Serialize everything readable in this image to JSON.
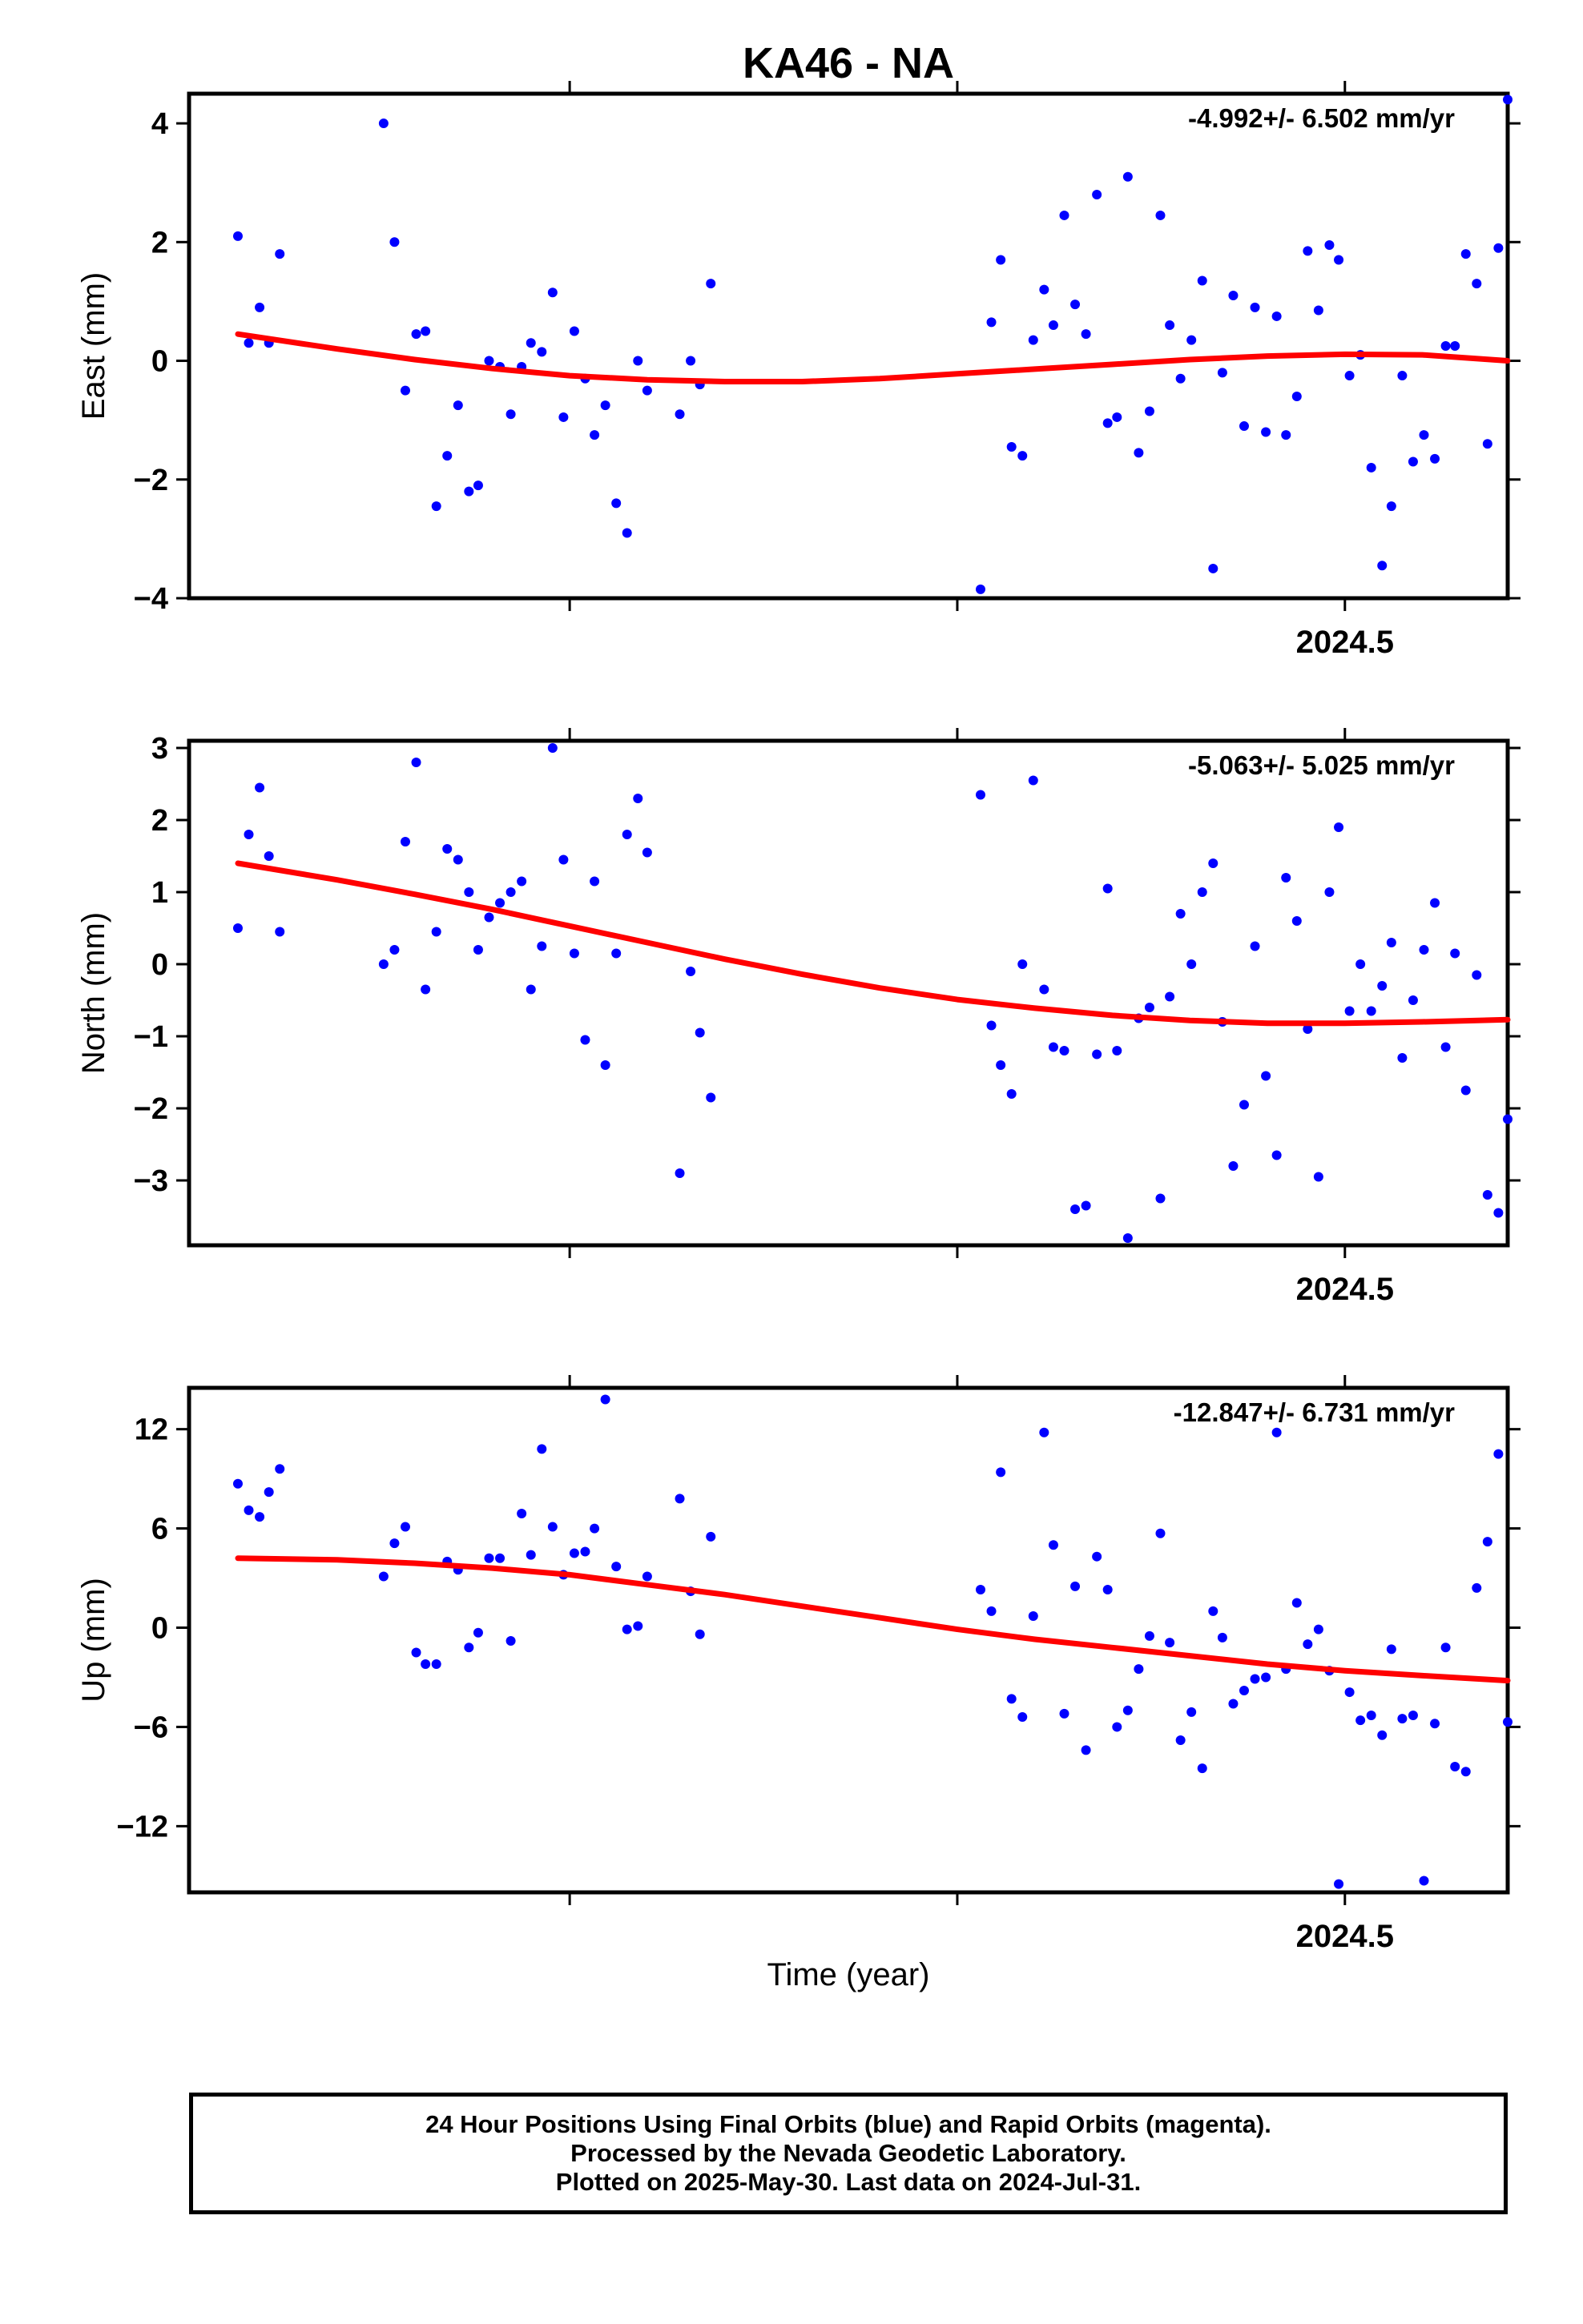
{
  "title": "KA46 - NA",
  "xlabel": "Time (year)",
  "footer": {
    "lines": [
      "24 Hour Positions Using Final Orbits (blue) and Rapid Orbits (magenta).",
      "Processed by the Nevada Geodetic Laboratory.",
      "Plotted on 2025-May-30. Last data on 2024-Jul-31."
    ]
  },
  "colors": {
    "points": "#0000ff",
    "fit": "#ff0000",
    "frame": "#000000"
  },
  "chart_data": [
    {
      "type": "scatter",
      "name": "east",
      "ylabel": "East (mm)",
      "rate_text": "-4.992+/- 6.502 mm/yr",
      "xlim": [
        2023.77,
        2024.605
      ],
      "ylim": [
        -4,
        4.5
      ],
      "yticks": [
        -4,
        -2,
        0,
        2,
        4
      ],
      "ytick_labels": [
        "−4",
        "−2",
        "0",
        "2",
        "4"
      ],
      "xticks": [
        2024.0,
        2024.25,
        2024.5
      ],
      "xtick_labels": [
        "",
        "",
        "2024.5"
      ],
      "points": [
        [
          2023.786,
          2.1
        ],
        [
          2023.793,
          0.3
        ],
        [
          2023.8,
          0.9
        ],
        [
          2023.806,
          0.3
        ],
        [
          2023.813,
          1.8
        ],
        [
          2023.88,
          4.0
        ],
        [
          2023.887,
          2.0
        ],
        [
          2023.894,
          -0.5
        ],
        [
          2023.901,
          0.45
        ],
        [
          2023.907,
          0.5
        ],
        [
          2023.914,
          -2.45
        ],
        [
          2023.921,
          -1.6
        ],
        [
          2023.928,
          -0.75
        ],
        [
          2023.935,
          -2.2
        ],
        [
          2023.941,
          -2.1
        ],
        [
          2023.948,
          0.0
        ],
        [
          2023.955,
          -0.1
        ],
        [
          2023.962,
          -0.9
        ],
        [
          2023.969,
          -0.1
        ],
        [
          2023.975,
          0.3
        ],
        [
          2023.982,
          0.15
        ],
        [
          2023.989,
          1.15
        ],
        [
          2023.996,
          -0.95
        ],
        [
          2024.003,
          0.5
        ],
        [
          2024.01,
          -0.3
        ],
        [
          2024.016,
          -1.25
        ],
        [
          2024.023,
          -0.75
        ],
        [
          2024.03,
          -2.4
        ],
        [
          2024.037,
          -2.9
        ],
        [
          2024.044,
          0.0
        ],
        [
          2024.05,
          -0.5
        ],
        [
          2024.071,
          -0.9
        ],
        [
          2024.078,
          0.0
        ],
        [
          2024.084,
          -0.4
        ],
        [
          2024.091,
          1.3
        ],
        [
          2024.265,
          -3.85
        ],
        [
          2024.272,
          0.65
        ],
        [
          2024.278,
          1.7
        ],
        [
          2024.285,
          -1.45
        ],
        [
          2024.292,
          -1.6
        ],
        [
          2024.299,
          0.35
        ],
        [
          2024.306,
          1.2
        ],
        [
          2024.312,
          0.6
        ],
        [
          2024.319,
          2.45
        ],
        [
          2024.326,
          0.95
        ],
        [
          2024.333,
          0.45
        ],
        [
          2024.34,
          2.8
        ],
        [
          2024.347,
          -1.05
        ],
        [
          2024.353,
          -0.95
        ],
        [
          2024.36,
          3.1
        ],
        [
          2024.367,
          -1.55
        ],
        [
          2024.374,
          -0.85
        ],
        [
          2024.381,
          2.45
        ],
        [
          2024.387,
          0.6
        ],
        [
          2024.394,
          -0.3
        ],
        [
          2024.401,
          0.35
        ],
        [
          2024.408,
          1.35
        ],
        [
          2024.415,
          -3.5
        ],
        [
          2024.421,
          -0.2
        ],
        [
          2024.428,
          1.1
        ],
        [
          2024.435,
          -1.1
        ],
        [
          2024.442,
          0.9
        ],
        [
          2024.449,
          -1.2
        ],
        [
          2024.456,
          0.75
        ],
        [
          2024.462,
          -1.25
        ],
        [
          2024.469,
          -0.6
        ],
        [
          2024.476,
          1.85
        ],
        [
          2024.483,
          0.85
        ],
        [
          2024.49,
          1.95
        ],
        [
          2024.496,
          1.7
        ],
        [
          2024.503,
          -0.25
        ],
        [
          2024.51,
          0.1
        ],
        [
          2024.517,
          -1.8
        ],
        [
          2024.524,
          -3.45
        ],
        [
          2024.53,
          -2.45
        ],
        [
          2024.537,
          -0.25
        ],
        [
          2024.544,
          -1.7
        ],
        [
          2024.551,
          -1.25
        ],
        [
          2024.558,
          -1.65
        ],
        [
          2024.565,
          0.25
        ],
        [
          2024.571,
          0.25
        ],
        [
          2024.578,
          1.8
        ],
        [
          2024.585,
          1.3
        ],
        [
          2024.592,
          -1.4
        ],
        [
          2024.599,
          1.9
        ],
        [
          2024.605,
          4.4
        ]
      ],
      "fit": [
        [
          2023.786,
          0.45
        ],
        [
          2023.85,
          0.2
        ],
        [
          2023.9,
          0.02
        ],
        [
          2023.95,
          -0.13
        ],
        [
          2024.0,
          -0.25
        ],
        [
          2024.05,
          -0.32
        ],
        [
          2024.1,
          -0.35
        ],
        [
          2024.15,
          -0.35
        ],
        [
          2024.2,
          -0.3
        ],
        [
          2024.25,
          -0.22
        ],
        [
          2024.3,
          -0.14
        ],
        [
          2024.35,
          -0.06
        ],
        [
          2024.4,
          0.02
        ],
        [
          2024.45,
          0.08
        ],
        [
          2024.5,
          0.11
        ],
        [
          2024.55,
          0.1
        ],
        [
          2024.605,
          0.0
        ]
      ]
    },
    {
      "type": "scatter",
      "name": "north",
      "ylabel": "North (mm)",
      "rate_text": "-5.063+/- 5.025 mm/yr",
      "xlim": [
        2023.77,
        2024.605
      ],
      "ylim": [
        -3.9,
        3.1
      ],
      "yticks": [
        -3,
        -2,
        -1,
        0,
        1,
        2,
        3
      ],
      "ytick_labels": [
        "−3",
        "−2",
        "−1",
        "0",
        "1",
        "2",
        "3"
      ],
      "xticks": [
        2024.0,
        2024.25,
        2024.5
      ],
      "xtick_labels": [
        "",
        "",
        "2024.5"
      ],
      "points": [
        [
          2023.786,
          0.5
        ],
        [
          2023.793,
          1.8
        ],
        [
          2023.8,
          2.45
        ],
        [
          2023.806,
          1.5
        ],
        [
          2023.813,
          0.45
        ],
        [
          2023.88,
          0.0
        ],
        [
          2023.887,
          0.2
        ],
        [
          2023.894,
          1.7
        ],
        [
          2023.901,
          2.8
        ],
        [
          2023.907,
          -0.35
        ],
        [
          2023.914,
          0.45
        ],
        [
          2023.921,
          1.6
        ],
        [
          2023.928,
          1.45
        ],
        [
          2023.935,
          1.0
        ],
        [
          2023.941,
          0.2
        ],
        [
          2023.948,
          0.65
        ],
        [
          2023.955,
          0.85
        ],
        [
          2023.962,
          1.0
        ],
        [
          2023.969,
          1.15
        ],
        [
          2023.975,
          -0.35
        ],
        [
          2023.982,
          0.25
        ],
        [
          2023.989,
          3.0
        ],
        [
          2023.996,
          1.45
        ],
        [
          2024.003,
          0.15
        ],
        [
          2024.01,
          -1.05
        ],
        [
          2024.016,
          1.15
        ],
        [
          2024.023,
          -1.4
        ],
        [
          2024.03,
          0.15
        ],
        [
          2024.037,
          1.8
        ],
        [
          2024.044,
          2.3
        ],
        [
          2024.05,
          1.55
        ],
        [
          2024.071,
          -2.9
        ],
        [
          2024.078,
          -0.1
        ],
        [
          2024.084,
          -0.95
        ],
        [
          2024.091,
          -1.85
        ],
        [
          2024.265,
          2.35
        ],
        [
          2024.272,
          -0.85
        ],
        [
          2024.278,
          -1.4
        ],
        [
          2024.285,
          -1.8
        ],
        [
          2024.292,
          0.0
        ],
        [
          2024.299,
          2.55
        ],
        [
          2024.306,
          -0.35
        ],
        [
          2024.312,
          -1.15
        ],
        [
          2024.319,
          -1.2
        ],
        [
          2024.326,
          -3.4
        ],
        [
          2024.333,
          -3.35
        ],
        [
          2024.34,
          -1.25
        ],
        [
          2024.347,
          1.05
        ],
        [
          2024.353,
          -1.2
        ],
        [
          2024.36,
          -3.8
        ],
        [
          2024.367,
          -0.75
        ],
        [
          2024.374,
          -0.6
        ],
        [
          2024.381,
          -3.25
        ],
        [
          2024.387,
          -0.45
        ],
        [
          2024.394,
          0.7
        ],
        [
          2024.401,
          0.0
        ],
        [
          2024.408,
          1.0
        ],
        [
          2024.415,
          1.4
        ],
        [
          2024.421,
          -0.8
        ],
        [
          2024.428,
          -2.8
        ],
        [
          2024.435,
          -1.95
        ],
        [
          2024.442,
          0.25
        ],
        [
          2024.449,
          -1.55
        ],
        [
          2024.456,
          -2.65
        ],
        [
          2024.462,
          1.2
        ],
        [
          2024.469,
          0.6
        ],
        [
          2024.476,
          -0.9
        ],
        [
          2024.483,
          -2.95
        ],
        [
          2024.49,
          1.0
        ],
        [
          2024.496,
          1.9
        ],
        [
          2024.503,
          -0.65
        ],
        [
          2024.51,
          0.0
        ],
        [
          2024.517,
          -0.65
        ],
        [
          2024.524,
          -0.3
        ],
        [
          2024.53,
          0.3
        ],
        [
          2024.537,
          -1.3
        ],
        [
          2024.544,
          -0.5
        ],
        [
          2024.551,
          0.2
        ],
        [
          2024.558,
          0.85
        ],
        [
          2024.565,
          -1.15
        ],
        [
          2024.571,
          0.15
        ],
        [
          2024.578,
          -1.75
        ],
        [
          2024.585,
          -0.15
        ],
        [
          2024.592,
          -3.2
        ],
        [
          2024.599,
          -3.45
        ],
        [
          2024.605,
          -2.15
        ]
      ],
      "fit": [
        [
          2023.786,
          1.4
        ],
        [
          2023.85,
          1.17
        ],
        [
          2023.9,
          0.97
        ],
        [
          2023.95,
          0.76
        ],
        [
          2024.0,
          0.53
        ],
        [
          2024.05,
          0.3
        ],
        [
          2024.1,
          0.07
        ],
        [
          2024.15,
          -0.14
        ],
        [
          2024.2,
          -0.33
        ],
        [
          2024.25,
          -0.49
        ],
        [
          2024.3,
          -0.61
        ],
        [
          2024.35,
          -0.71
        ],
        [
          2024.4,
          -0.78
        ],
        [
          2024.45,
          -0.82
        ],
        [
          2024.5,
          -0.82
        ],
        [
          2024.55,
          -0.8
        ],
        [
          2024.605,
          -0.77
        ]
      ]
    },
    {
      "type": "scatter",
      "name": "up",
      "ylabel": "Up (mm)",
      "rate_text": "-12.847+/- 6.731 mm/yr",
      "xlim": [
        2023.77,
        2024.605
      ],
      "ylim": [
        -16,
        14.5
      ],
      "yticks": [
        -12,
        -6,
        0,
        6,
        12
      ],
      "ytick_labels": [
        "−12",
        "−6",
        "0",
        "6",
        "12"
      ],
      "xticks": [
        2024.0,
        2024.25,
        2024.5
      ],
      "xtick_labels": [
        "",
        "",
        "2024.5"
      ],
      "points": [
        [
          2023.786,
          8.7
        ],
        [
          2023.793,
          7.1
        ],
        [
          2023.8,
          6.7
        ],
        [
          2023.806,
          8.2
        ],
        [
          2023.813,
          9.6
        ],
        [
          2023.88,
          3.1
        ],
        [
          2023.887,
          5.1
        ],
        [
          2023.894,
          6.1
        ],
        [
          2023.901,
          -1.5
        ],
        [
          2023.907,
          -2.2
        ],
        [
          2023.914,
          -2.2
        ],
        [
          2023.921,
          4.0
        ],
        [
          2023.928,
          3.5
        ],
        [
          2023.935,
          -1.2
        ],
        [
          2023.941,
          -0.3
        ],
        [
          2023.948,
          4.2
        ],
        [
          2023.955,
          4.2
        ],
        [
          2023.962,
          -0.8
        ],
        [
          2023.969,
          6.9
        ],
        [
          2023.975,
          4.4
        ],
        [
          2023.982,
          10.8
        ],
        [
          2023.989,
          6.1
        ],
        [
          2023.996,
          3.2
        ],
        [
          2024.003,
          4.5
        ],
        [
          2024.01,
          4.6
        ],
        [
          2024.016,
          6.0
        ],
        [
          2024.023,
          13.8
        ],
        [
          2024.03,
          3.7
        ],
        [
          2024.037,
          -0.1
        ],
        [
          2024.044,
          0.1
        ],
        [
          2024.05,
          3.1
        ],
        [
          2024.071,
          7.8
        ],
        [
          2024.078,
          2.2
        ],
        [
          2024.084,
          -0.4
        ],
        [
          2024.091,
          5.5
        ],
        [
          2024.265,
          2.3
        ],
        [
          2024.272,
          1.0
        ],
        [
          2024.278,
          9.4
        ],
        [
          2024.285,
          -4.3
        ],
        [
          2024.292,
          -5.4
        ],
        [
          2024.299,
          0.7
        ],
        [
          2024.306,
          11.8
        ],
        [
          2024.312,
          5.0
        ],
        [
          2024.319,
          -5.2
        ],
        [
          2024.326,
          2.5
        ],
        [
          2024.333,
          -7.4
        ],
        [
          2024.34,
          4.3
        ],
        [
          2024.347,
          2.3
        ],
        [
          2024.353,
          -6.0
        ],
        [
          2024.36,
          -5.0
        ],
        [
          2024.367,
          -2.5
        ],
        [
          2024.374,
          -0.5
        ],
        [
          2024.381,
          5.7
        ],
        [
          2024.387,
          -0.9
        ],
        [
          2024.394,
          -6.8
        ],
        [
          2024.401,
          -5.1
        ],
        [
          2024.408,
          -8.5
        ],
        [
          2024.415,
          1.0
        ],
        [
          2024.421,
          -0.6
        ],
        [
          2024.428,
          -4.6
        ],
        [
          2024.435,
          -3.8
        ],
        [
          2024.442,
          -3.1
        ],
        [
          2024.449,
          -3.0
        ],
        [
          2024.456,
          11.8
        ],
        [
          2024.462,
          -2.5
        ],
        [
          2024.469,
          1.5
        ],
        [
          2024.476,
          -1.0
        ],
        [
          2024.483,
          -0.1
        ],
        [
          2024.49,
          -2.6
        ],
        [
          2024.496,
          -15.5
        ],
        [
          2024.503,
          -3.9
        ],
        [
          2024.51,
          -5.6
        ],
        [
          2024.517,
          -5.3
        ],
        [
          2024.524,
          -6.5
        ],
        [
          2024.53,
          -1.3
        ],
        [
          2024.537,
          -5.5
        ],
        [
          2024.544,
          -5.3
        ],
        [
          2024.551,
          -15.3
        ],
        [
          2024.558,
          -5.8
        ],
        [
          2024.565,
          -1.2
        ],
        [
          2024.571,
          -8.4
        ],
        [
          2024.578,
          -8.7
        ],
        [
          2024.585,
          2.4
        ],
        [
          2024.592,
          5.2
        ],
        [
          2024.599,
          10.5
        ],
        [
          2024.605,
          -5.7
        ]
      ],
      "fit": [
        [
          2023.786,
          4.2
        ],
        [
          2023.85,
          4.1
        ],
        [
          2023.9,
          3.9
        ],
        [
          2023.95,
          3.6
        ],
        [
          2024.0,
          3.2
        ],
        [
          2024.05,
          2.6
        ],
        [
          2024.1,
          2.0
        ],
        [
          2024.15,
          1.3
        ],
        [
          2024.2,
          0.6
        ],
        [
          2024.25,
          -0.1
        ],
        [
          2024.3,
          -0.7
        ],
        [
          2024.35,
          -1.2
        ],
        [
          2024.4,
          -1.7
        ],
        [
          2024.45,
          -2.2
        ],
        [
          2024.5,
          -2.6
        ],
        [
          2024.55,
          -2.9
        ],
        [
          2024.605,
          -3.2
        ]
      ]
    }
  ]
}
